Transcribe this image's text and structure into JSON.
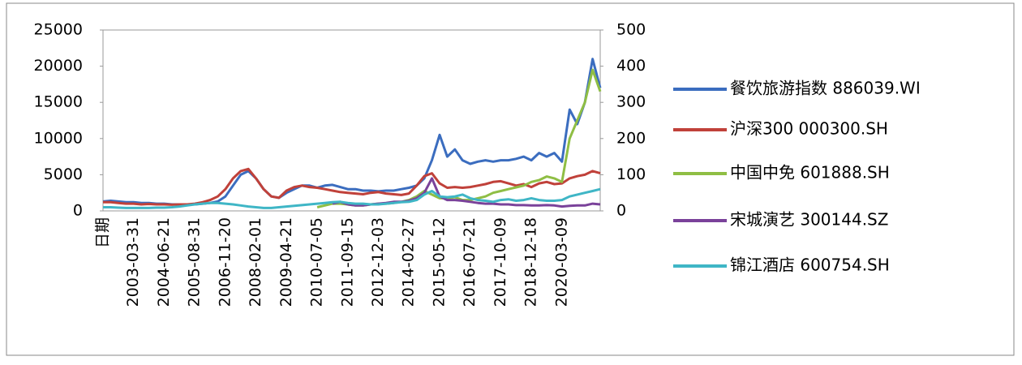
{
  "chart_data": {
    "type": "line",
    "categories": [
      "日期",
      null,
      null,
      null,
      "2003-03-31",
      null,
      null,
      null,
      "2004-06-21",
      null,
      null,
      null,
      "2005-08-31",
      null,
      null,
      null,
      "2006-11-20",
      null,
      null,
      null,
      "2008-02-01",
      null,
      null,
      null,
      "2009-04-21",
      null,
      null,
      null,
      "2010-07-05",
      null,
      null,
      null,
      "2011-09-15",
      null,
      null,
      null,
      "2012-12-03",
      null,
      null,
      null,
      "2014-02-27",
      null,
      null,
      null,
      "2015-05-12",
      null,
      null,
      null,
      "2016-07-21",
      null,
      null,
      null,
      "2017-10-09",
      null,
      null,
      null,
      "2018-12-18",
      null,
      null,
      null,
      "2020-03-09",
      null,
      null,
      null,
      null,
      null
    ],
    "ylim": [
      0,
      25000
    ],
    "yticks": [
      0,
      5000,
      10000,
      15000,
      20000,
      25000
    ],
    "y2lim": [
      0,
      500
    ],
    "y2ticks": [
      0,
      100,
      200,
      300,
      400,
      500
    ],
    "legend": "right",
    "series": [
      {
        "name": "餐饮旅游指数 886039.WI",
        "color": "#3b6dbf",
        "values": [
          1300,
          1400,
          1300,
          1200,
          1200,
          1100,
          1100,
          1000,
          1000,
          900,
          900,
          900,
          900,
          1000,
          1100,
          1300,
          2000,
          3500,
          5000,
          5500,
          4500,
          3000,
          2000,
          1800,
          2500,
          3000,
          3500,
          3500,
          3200,
          3500,
          3600,
          3300,
          3000,
          3000,
          2800,
          2800,
          2700,
          2800,
          2800,
          3000,
          3200,
          3500,
          4500,
          7000,
          10500,
          7500,
          8500,
          7000,
          6500,
          6800,
          7000,
          6800,
          7000,
          7000,
          7200,
          7500,
          7000,
          8000,
          7500,
          8000,
          6800,
          14000,
          12000,
          15000,
          21000,
          17000
        ]
      },
      {
        "name": "沪深300 000300.SH",
        "color": "#c0413a",
        "values": [
          1200,
          1200,
          1100,
          1000,
          1000,
          900,
          950,
          900,
          900,
          850,
          900,
          900,
          1000,
          1200,
          1500,
          2000,
          3000,
          4500,
          5500,
          5800,
          4500,
          3000,
          2000,
          1800,
          2800,
          3300,
          3500,
          3300,
          3200,
          3000,
          2800,
          2600,
          2500,
          2400,
          2300,
          2500,
          2600,
          2400,
          2300,
          2200,
          2400,
          3500,
          4800,
          5200,
          3800,
          3200,
          3300,
          3200,
          3300,
          3500,
          3700,
          4000,
          4100,
          3800,
          3500,
          3700,
          3300,
          3800,
          4000,
          3700,
          3800,
          4500,
          4800,
          5000,
          5500,
          5200
        ]
      },
      {
        "name": "中国中免 601888.SH",
        "color": "#8fbe44",
        "axis": "y2",
        "values": [
          null,
          null,
          null,
          null,
          null,
          null,
          null,
          null,
          null,
          null,
          null,
          null,
          null,
          null,
          null,
          null,
          null,
          null,
          null,
          null,
          null,
          null,
          null,
          null,
          null,
          null,
          null,
          null,
          10,
          15,
          20,
          20,
          18,
          15,
          15,
          18,
          20,
          20,
          22,
          25,
          30,
          40,
          55,
          45,
          35,
          35,
          38,
          30,
          30,
          35,
          40,
          50,
          55,
          60,
          65,
          70,
          80,
          85,
          95,
          90,
          80,
          200,
          250,
          300,
          390,
          330
        ]
      },
      {
        "name": "宋城演艺 300144.SZ",
        "color": "#7a429a",
        "axis": "y2",
        "values": [
          null,
          null,
          null,
          null,
          null,
          null,
          null,
          null,
          null,
          null,
          null,
          null,
          null,
          null,
          null,
          null,
          null,
          null,
          null,
          null,
          null,
          null,
          null,
          null,
          null,
          null,
          null,
          null,
          null,
          null,
          20,
          25,
          18,
          15,
          15,
          18,
          20,
          22,
          25,
          25,
          28,
          35,
          50,
          90,
          40,
          30,
          30,
          28,
          25,
          22,
          20,
          20,
          18,
          18,
          16,
          16,
          15,
          15,
          16,
          15,
          12,
          14,
          15,
          15,
          20,
          18
        ]
      },
      {
        "name": "锦江酒店 600754.SH",
        "color": "#3fb6c6",
        "axis": "y2",
        "values": [
          10,
          10,
          9,
          8,
          8,
          8,
          8,
          9,
          9,
          10,
          12,
          15,
          18,
          20,
          22,
          22,
          20,
          18,
          15,
          12,
          10,
          8,
          8,
          10,
          12,
          14,
          16,
          18,
          20,
          22,
          24,
          25,
          22,
          20,
          20,
          18,
          18,
          20,
          22,
          24,
          25,
          30,
          45,
          55,
          40,
          38,
          40,
          45,
          35,
          30,
          28,
          25,
          30,
          32,
          28,
          30,
          35,
          30,
          28,
          28,
          30,
          40,
          45,
          50,
          55,
          60
        ]
      }
    ]
  }
}
